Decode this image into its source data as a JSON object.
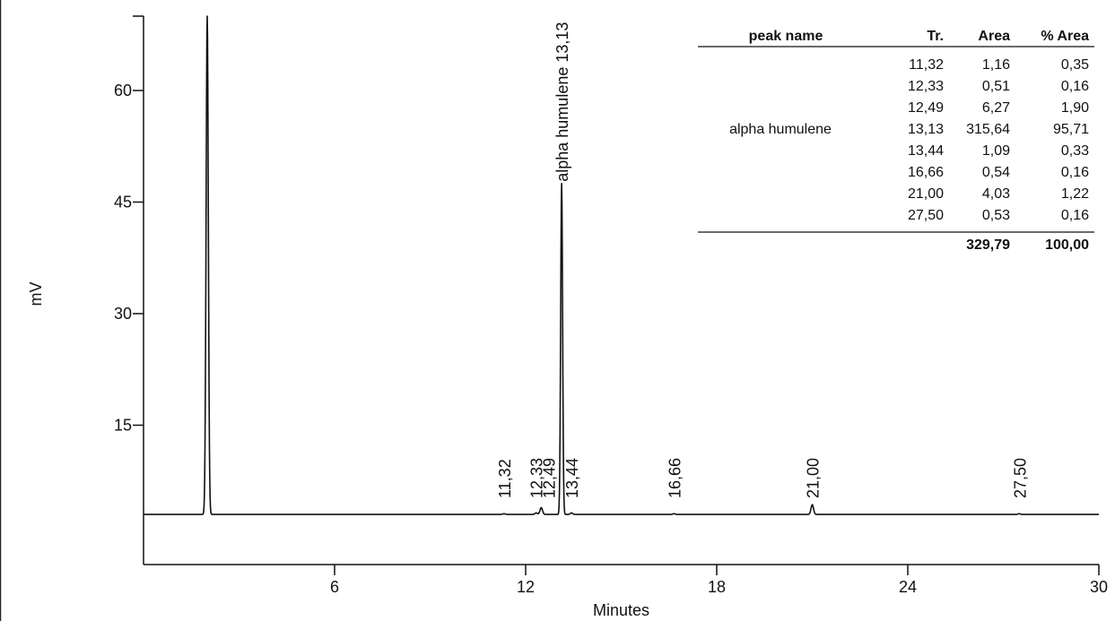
{
  "chart_data": {
    "type": "line",
    "xlabel": "Minutes",
    "ylabel": "mV",
    "xlim": [
      0,
      30
    ],
    "ylim": [
      0,
      70
    ],
    "x_ticks": [
      6,
      12,
      18,
      24,
      30
    ],
    "y_ticks": [
      15,
      30,
      45,
      60
    ],
    "baseline_mV": 3.0,
    "peaks": [
      {
        "time": 2.0,
        "height_mV": 70,
        "label": ""
      },
      {
        "time": 11.32,
        "height_mV": 3.1,
        "label": "11,32"
      },
      {
        "time": 12.33,
        "height_mV": 3.2,
        "label": "12,33"
      },
      {
        "time": 12.49,
        "height_mV": 3.9,
        "label": "12,49"
      },
      {
        "time": 13.13,
        "height_mV": 47.5,
        "label": "alpha humulene 13,13"
      },
      {
        "time": 13.44,
        "height_mV": 3.2,
        "label": "13,44"
      },
      {
        "time": 16.66,
        "height_mV": 3.1,
        "label": "16,66"
      },
      {
        "time": 21.0,
        "height_mV": 4.3,
        "label": "21,00"
      },
      {
        "time": 27.5,
        "height_mV": 3.1,
        "label": "27,50"
      }
    ]
  },
  "peak_table": {
    "headers": [
      "peak name",
      "Tr.",
      "Area",
      "% Area"
    ],
    "rows": [
      [
        "",
        "11,32",
        "1,16",
        "0,35"
      ],
      [
        "",
        "12,33",
        "0,51",
        "0,16"
      ],
      [
        "",
        "12,49",
        "6,27",
        "1,90"
      ],
      [
        "alpha humulene",
        "13,13",
        "315,64",
        "95,71"
      ],
      [
        "",
        "13,44",
        "1,09",
        "0,33"
      ],
      [
        "",
        "16,66",
        "0,54",
        "0,16"
      ],
      [
        "",
        "21,00",
        "4,03",
        "1,22"
      ],
      [
        "",
        "27,50",
        "0,53",
        "0,16"
      ]
    ],
    "totals": [
      "",
      "",
      "329,79",
      "100,00"
    ]
  }
}
